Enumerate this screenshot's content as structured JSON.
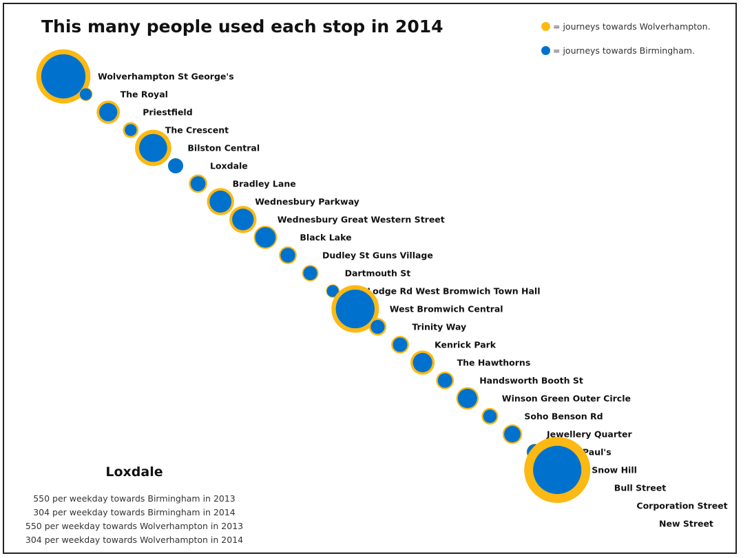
{
  "title": "This many people used each stop in 2014",
  "legend": [
    {
      "label": "= journeys towards Wolverhampton.",
      "color": "#FDB913"
    },
    {
      "label": "= journeys towards Birmingham.",
      "color": "#0072CE"
    }
  ],
  "detail": {
    "stop": "Loxdale",
    "lines": [
      "550 per weekday towards Birmingham in 2013",
      "304 per weekday towards Birmingham in 2014",
      "550 per weekday towards Wolverhampton in 2013",
      "304 per weekday towards Wolverhampton in 2014"
    ]
  },
  "chart_data": {
    "type": "scatter",
    "title": "This many people used each stop in 2014",
    "series": [
      {
        "name": "journeys towards Wolverhampton.",
        "color": "#FDB913"
      },
      {
        "name": "journeys towards Birmingham.",
        "color": "#0072CE"
      }
    ],
    "stops": [
      {
        "name": "Wolverhampton St George's",
        "wolverhampton": 3900,
        "birmingham": 2600
      },
      {
        "name": "The Royal",
        "wolverhampton": 240,
        "birmingham": 190
      },
      {
        "name": "Priestfield",
        "wolverhampton": 720,
        "birmingham": 440
      },
      {
        "name": "The Crescent",
        "wolverhampton": 330,
        "birmingham": 190
      },
      {
        "name": "Bilston Central",
        "wolverhampton": 1750,
        "birmingham": 1050
      },
      {
        "name": "Loxdale",
        "wolverhampton": 304,
        "birmingham": 304
      },
      {
        "name": "Bradley Lane",
        "wolverhampton": 450,
        "birmingham": 300
      },
      {
        "name": "Wednesbury Parkway",
        "wolverhampton": 980,
        "birmingham": 640
      },
      {
        "name": "Wednesbury Great Western Street",
        "wolverhampton": 980,
        "birmingham": 620
      },
      {
        "name": "Black Lake",
        "wolverhampton": 720,
        "birmingham": 560
      },
      {
        "name": "Dudley St Guns Village",
        "wolverhampton": 420,
        "birmingham": 290
      },
      {
        "name": "Dartmouth St",
        "wolverhampton": 360,
        "birmingham": 260
      },
      {
        "name": "Lodge Rd West Bromwich Town Hall",
        "wolverhampton": 240,
        "birmingham": 190
      },
      {
        "name": "West Bromwich Central",
        "wolverhampton": 3000,
        "birmingham": 2000
      },
      {
        "name": "Trinity Way",
        "wolverhampton": 410,
        "birmingham": 260
      },
      {
        "name": "Kenrick Park",
        "wolverhampton": 420,
        "birmingham": 280
      },
      {
        "name": "The Hawthorns",
        "wolverhampton": 780,
        "birmingham": 500
      },
      {
        "name": "Handsworth Booth St",
        "wolverhampton": 420,
        "birmingham": 280
      },
      {
        "name": "Winson Green Outer Circle",
        "wolverhampton": 670,
        "birmingham": 500
      },
      {
        "name": "Soho Benson Rd",
        "wolverhampton": 370,
        "birmingham": 240
      },
      {
        "name": "Jewellery Quarter",
        "wolverhampton": 510,
        "birmingham": 360
      },
      {
        "name": "St Paul's",
        "wolverhampton": 360,
        "birmingham": 330
      },
      {
        "name": "Snow Hill",
        "wolverhampton": 5800,
        "birmingham": 3100
      },
      {
        "name": "Bull Street",
        "wolverhampton": 0,
        "birmingham": 0
      },
      {
        "name": "Corporation Street",
        "wolverhampton": 0,
        "birmingham": 0
      },
      {
        "name": "New Street",
        "wolverhampton": 0,
        "birmingham": 0
      }
    ]
  }
}
